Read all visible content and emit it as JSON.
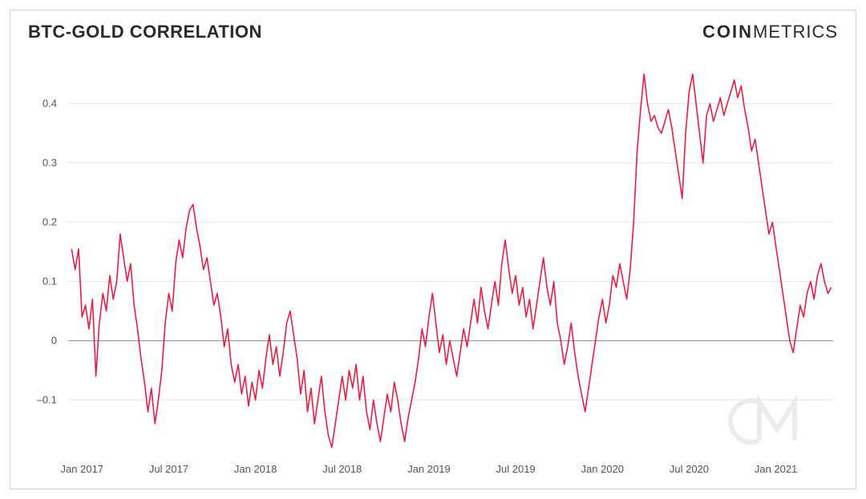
{
  "header": {
    "title": "BTC-GOLD CORRELATION",
    "brand_bold": "COIN",
    "brand_light": "METRICS"
  },
  "chart": {
    "type": "line",
    "background_color": "#ffffff",
    "border_color": "#d0d0d0",
    "grid_color": "#e5e5e5",
    "zero_line_color": "#888888",
    "tick_color": "#555555",
    "tick_fontsize": 13,
    "series_color": "#e91e44",
    "series_width": 1.6,
    "watermark_color": "#e8ecef",
    "watermark_text": "CM",
    "ylim": [
      -0.19,
      0.46
    ],
    "yticks": [
      -0.1,
      0,
      0.1,
      0.2,
      0.3,
      0.4
    ],
    "xlim": [
      2016.92,
      2021.33
    ],
    "xticks": [
      {
        "pos": 2017.0,
        "label": "Jan 2017"
      },
      {
        "pos": 2017.5,
        "label": "Jul 2017"
      },
      {
        "pos": 2018.0,
        "label": "Jan 2018"
      },
      {
        "pos": 2018.5,
        "label": "Jul 2018"
      },
      {
        "pos": 2019.0,
        "label": "Jan 2019"
      },
      {
        "pos": 2019.5,
        "label": "Jul 2019"
      },
      {
        "pos": 2020.0,
        "label": "Jan 2020"
      },
      {
        "pos": 2020.5,
        "label": "Jul 2020"
      },
      {
        "pos": 2021.0,
        "label": "Jan 2021"
      }
    ],
    "series": [
      {
        "x": 2016.94,
        "y": 0.155
      },
      {
        "x": 2016.96,
        "y": 0.12
      },
      {
        "x": 2016.98,
        "y": 0.155
      },
      {
        "x": 2017.0,
        "y": 0.04
      },
      {
        "x": 2017.02,
        "y": 0.06
      },
      {
        "x": 2017.04,
        "y": 0.02
      },
      {
        "x": 2017.06,
        "y": 0.07
      },
      {
        "x": 2017.08,
        "y": -0.06
      },
      {
        "x": 2017.1,
        "y": 0.03
      },
      {
        "x": 2017.12,
        "y": 0.08
      },
      {
        "x": 2017.14,
        "y": 0.05
      },
      {
        "x": 2017.16,
        "y": 0.11
      },
      {
        "x": 2017.18,
        "y": 0.07
      },
      {
        "x": 2017.2,
        "y": 0.1
      },
      {
        "x": 2017.22,
        "y": 0.18
      },
      {
        "x": 2017.24,
        "y": 0.14
      },
      {
        "x": 2017.26,
        "y": 0.1
      },
      {
        "x": 2017.28,
        "y": 0.13
      },
      {
        "x": 2017.3,
        "y": 0.06
      },
      {
        "x": 2017.32,
        "y": 0.02
      },
      {
        "x": 2017.34,
        "y": -0.03
      },
      {
        "x": 2017.36,
        "y": -0.07
      },
      {
        "x": 2017.38,
        "y": -0.12
      },
      {
        "x": 2017.4,
        "y": -0.08
      },
      {
        "x": 2017.42,
        "y": -0.14
      },
      {
        "x": 2017.44,
        "y": -0.1
      },
      {
        "x": 2017.46,
        "y": -0.05
      },
      {
        "x": 2017.48,
        "y": 0.03
      },
      {
        "x": 2017.5,
        "y": 0.08
      },
      {
        "x": 2017.52,
        "y": 0.05
      },
      {
        "x": 2017.54,
        "y": 0.13
      },
      {
        "x": 2017.56,
        "y": 0.17
      },
      {
        "x": 2017.58,
        "y": 0.14
      },
      {
        "x": 2017.6,
        "y": 0.19
      },
      {
        "x": 2017.62,
        "y": 0.22
      },
      {
        "x": 2017.64,
        "y": 0.23
      },
      {
        "x": 2017.66,
        "y": 0.19
      },
      {
        "x": 2017.68,
        "y": 0.16
      },
      {
        "x": 2017.7,
        "y": 0.12
      },
      {
        "x": 2017.72,
        "y": 0.14
      },
      {
        "x": 2017.74,
        "y": 0.1
      },
      {
        "x": 2017.76,
        "y": 0.06
      },
      {
        "x": 2017.78,
        "y": 0.08
      },
      {
        "x": 2017.8,
        "y": 0.04
      },
      {
        "x": 2017.82,
        "y": -0.01
      },
      {
        "x": 2017.84,
        "y": 0.02
      },
      {
        "x": 2017.86,
        "y": -0.04
      },
      {
        "x": 2017.88,
        "y": -0.07
      },
      {
        "x": 2017.9,
        "y": -0.04
      },
      {
        "x": 2017.92,
        "y": -0.09
      },
      {
        "x": 2017.94,
        "y": -0.06
      },
      {
        "x": 2017.96,
        "y": -0.11
      },
      {
        "x": 2017.98,
        "y": -0.07
      },
      {
        "x": 2018.0,
        "y": -0.1
      },
      {
        "x": 2018.02,
        "y": -0.05
      },
      {
        "x": 2018.04,
        "y": -0.08
      },
      {
        "x": 2018.06,
        "y": -0.03
      },
      {
        "x": 2018.08,
        "y": 0.01
      },
      {
        "x": 2018.1,
        "y": -0.04
      },
      {
        "x": 2018.12,
        "y": -0.01
      },
      {
        "x": 2018.14,
        "y": -0.06
      },
      {
        "x": 2018.16,
        "y": -0.02
      },
      {
        "x": 2018.18,
        "y": 0.03
      },
      {
        "x": 2018.2,
        "y": 0.05
      },
      {
        "x": 2018.22,
        "y": 0.01
      },
      {
        "x": 2018.24,
        "y": -0.03
      },
      {
        "x": 2018.26,
        "y": -0.09
      },
      {
        "x": 2018.28,
        "y": -0.05
      },
      {
        "x": 2018.3,
        "y": -0.12
      },
      {
        "x": 2018.32,
        "y": -0.08
      },
      {
        "x": 2018.34,
        "y": -0.14
      },
      {
        "x": 2018.36,
        "y": -0.1
      },
      {
        "x": 2018.38,
        "y": -0.06
      },
      {
        "x": 2018.4,
        "y": -0.12
      },
      {
        "x": 2018.42,
        "y": -0.16
      },
      {
        "x": 2018.44,
        "y": -0.18
      },
      {
        "x": 2018.46,
        "y": -0.14
      },
      {
        "x": 2018.48,
        "y": -0.1
      },
      {
        "x": 2018.5,
        "y": -0.06
      },
      {
        "x": 2018.52,
        "y": -0.1
      },
      {
        "x": 2018.54,
        "y": -0.05
      },
      {
        "x": 2018.56,
        "y": -0.08
      },
      {
        "x": 2018.58,
        "y": -0.04
      },
      {
        "x": 2018.6,
        "y": -0.1
      },
      {
        "x": 2018.62,
        "y": -0.06
      },
      {
        "x": 2018.64,
        "y": -0.12
      },
      {
        "x": 2018.66,
        "y": -0.15
      },
      {
        "x": 2018.68,
        "y": -0.1
      },
      {
        "x": 2018.7,
        "y": -0.14
      },
      {
        "x": 2018.72,
        "y": -0.17
      },
      {
        "x": 2018.74,
        "y": -0.13
      },
      {
        "x": 2018.76,
        "y": -0.09
      },
      {
        "x": 2018.78,
        "y": -0.12
      },
      {
        "x": 2018.8,
        "y": -0.07
      },
      {
        "x": 2018.82,
        "y": -0.1
      },
      {
        "x": 2018.84,
        "y": -0.14
      },
      {
        "x": 2018.86,
        "y": -0.17
      },
      {
        "x": 2018.88,
        "y": -0.13
      },
      {
        "x": 2018.9,
        "y": -0.1
      },
      {
        "x": 2018.92,
        "y": -0.07
      },
      {
        "x": 2018.94,
        "y": -0.03
      },
      {
        "x": 2018.96,
        "y": 0.02
      },
      {
        "x": 2018.98,
        "y": -0.01
      },
      {
        "x": 2019.0,
        "y": 0.04
      },
      {
        "x": 2019.02,
        "y": 0.08
      },
      {
        "x": 2019.04,
        "y": 0.03
      },
      {
        "x": 2019.06,
        "y": -0.02
      },
      {
        "x": 2019.08,
        "y": 0.01
      },
      {
        "x": 2019.1,
        "y": -0.04
      },
      {
        "x": 2019.12,
        "y": 0.0
      },
      {
        "x": 2019.14,
        "y": -0.03
      },
      {
        "x": 2019.16,
        "y": -0.06
      },
      {
        "x": 2019.18,
        "y": -0.02
      },
      {
        "x": 2019.2,
        "y": 0.02
      },
      {
        "x": 2019.22,
        "y": -0.01
      },
      {
        "x": 2019.24,
        "y": 0.03
      },
      {
        "x": 2019.26,
        "y": 0.07
      },
      {
        "x": 2019.28,
        "y": 0.03
      },
      {
        "x": 2019.3,
        "y": 0.09
      },
      {
        "x": 2019.32,
        "y": 0.05
      },
      {
        "x": 2019.34,
        "y": 0.02
      },
      {
        "x": 2019.36,
        "y": 0.06
      },
      {
        "x": 2019.38,
        "y": 0.1
      },
      {
        "x": 2019.4,
        "y": 0.06
      },
      {
        "x": 2019.42,
        "y": 0.13
      },
      {
        "x": 2019.44,
        "y": 0.17
      },
      {
        "x": 2019.46,
        "y": 0.12
      },
      {
        "x": 2019.48,
        "y": 0.08
      },
      {
        "x": 2019.5,
        "y": 0.11
      },
      {
        "x": 2019.52,
        "y": 0.06
      },
      {
        "x": 2019.54,
        "y": 0.09
      },
      {
        "x": 2019.56,
        "y": 0.04
      },
      {
        "x": 2019.58,
        "y": 0.07
      },
      {
        "x": 2019.6,
        "y": 0.02
      },
      {
        "x": 2019.62,
        "y": 0.06
      },
      {
        "x": 2019.64,
        "y": 0.1
      },
      {
        "x": 2019.66,
        "y": 0.14
      },
      {
        "x": 2019.68,
        "y": 0.09
      },
      {
        "x": 2019.7,
        "y": 0.06
      },
      {
        "x": 2019.72,
        "y": 0.1
      },
      {
        "x": 2019.74,
        "y": 0.03
      },
      {
        "x": 2019.76,
        "y": 0.0
      },
      {
        "x": 2019.78,
        "y": -0.04
      },
      {
        "x": 2019.8,
        "y": -0.01
      },
      {
        "x": 2019.82,
        "y": 0.03
      },
      {
        "x": 2019.84,
        "y": -0.02
      },
      {
        "x": 2019.86,
        "y": -0.06
      },
      {
        "x": 2019.88,
        "y": -0.09
      },
      {
        "x": 2019.9,
        "y": -0.12
      },
      {
        "x": 2019.92,
        "y": -0.08
      },
      {
        "x": 2019.94,
        "y": -0.04
      },
      {
        "x": 2019.96,
        "y": 0.0
      },
      {
        "x": 2019.98,
        "y": 0.04
      },
      {
        "x": 2020.0,
        "y": 0.07
      },
      {
        "x": 2020.02,
        "y": 0.03
      },
      {
        "x": 2020.04,
        "y": 0.06
      },
      {
        "x": 2020.06,
        "y": 0.11
      },
      {
        "x": 2020.08,
        "y": 0.09
      },
      {
        "x": 2020.1,
        "y": 0.13
      },
      {
        "x": 2020.12,
        "y": 0.1
      },
      {
        "x": 2020.14,
        "y": 0.07
      },
      {
        "x": 2020.16,
        "y": 0.12
      },
      {
        "x": 2020.18,
        "y": 0.2
      },
      {
        "x": 2020.2,
        "y": 0.32
      },
      {
        "x": 2020.22,
        "y": 0.39
      },
      {
        "x": 2020.24,
        "y": 0.45
      },
      {
        "x": 2020.26,
        "y": 0.4
      },
      {
        "x": 2020.28,
        "y": 0.37
      },
      {
        "x": 2020.3,
        "y": 0.38
      },
      {
        "x": 2020.32,
        "y": 0.36
      },
      {
        "x": 2020.34,
        "y": 0.35
      },
      {
        "x": 2020.36,
        "y": 0.37
      },
      {
        "x": 2020.38,
        "y": 0.39
      },
      {
        "x": 2020.4,
        "y": 0.36
      },
      {
        "x": 2020.42,
        "y": 0.32
      },
      {
        "x": 2020.44,
        "y": 0.28
      },
      {
        "x": 2020.46,
        "y": 0.24
      },
      {
        "x": 2020.48,
        "y": 0.35
      },
      {
        "x": 2020.5,
        "y": 0.42
      },
      {
        "x": 2020.52,
        "y": 0.45
      },
      {
        "x": 2020.54,
        "y": 0.4
      },
      {
        "x": 2020.56,
        "y": 0.35
      },
      {
        "x": 2020.58,
        "y": 0.3
      },
      {
        "x": 2020.6,
        "y": 0.38
      },
      {
        "x": 2020.62,
        "y": 0.4
      },
      {
        "x": 2020.64,
        "y": 0.37
      },
      {
        "x": 2020.66,
        "y": 0.39
      },
      {
        "x": 2020.68,
        "y": 0.41
      },
      {
        "x": 2020.7,
        "y": 0.38
      },
      {
        "x": 2020.72,
        "y": 0.4
      },
      {
        "x": 2020.74,
        "y": 0.42
      },
      {
        "x": 2020.76,
        "y": 0.44
      },
      {
        "x": 2020.78,
        "y": 0.41
      },
      {
        "x": 2020.8,
        "y": 0.43
      },
      {
        "x": 2020.82,
        "y": 0.39
      },
      {
        "x": 2020.84,
        "y": 0.36
      },
      {
        "x": 2020.86,
        "y": 0.32
      },
      {
        "x": 2020.88,
        "y": 0.34
      },
      {
        "x": 2020.9,
        "y": 0.3
      },
      {
        "x": 2020.92,
        "y": 0.26
      },
      {
        "x": 2020.94,
        "y": 0.22
      },
      {
        "x": 2020.96,
        "y": 0.18
      },
      {
        "x": 2020.98,
        "y": 0.2
      },
      {
        "x": 2021.0,
        "y": 0.16
      },
      {
        "x": 2021.02,
        "y": 0.12
      },
      {
        "x": 2021.04,
        "y": 0.08
      },
      {
        "x": 2021.06,
        "y": 0.04
      },
      {
        "x": 2021.08,
        "y": 0.0
      },
      {
        "x": 2021.1,
        "y": -0.02
      },
      {
        "x": 2021.12,
        "y": 0.02
      },
      {
        "x": 2021.14,
        "y": 0.06
      },
      {
        "x": 2021.16,
        "y": 0.04
      },
      {
        "x": 2021.18,
        "y": 0.08
      },
      {
        "x": 2021.2,
        "y": 0.1
      },
      {
        "x": 2021.22,
        "y": 0.07
      },
      {
        "x": 2021.24,
        "y": 0.11
      },
      {
        "x": 2021.26,
        "y": 0.13
      },
      {
        "x": 2021.28,
        "y": 0.1
      },
      {
        "x": 2021.3,
        "y": 0.08
      },
      {
        "x": 2021.32,
        "y": 0.09
      }
    ]
  }
}
